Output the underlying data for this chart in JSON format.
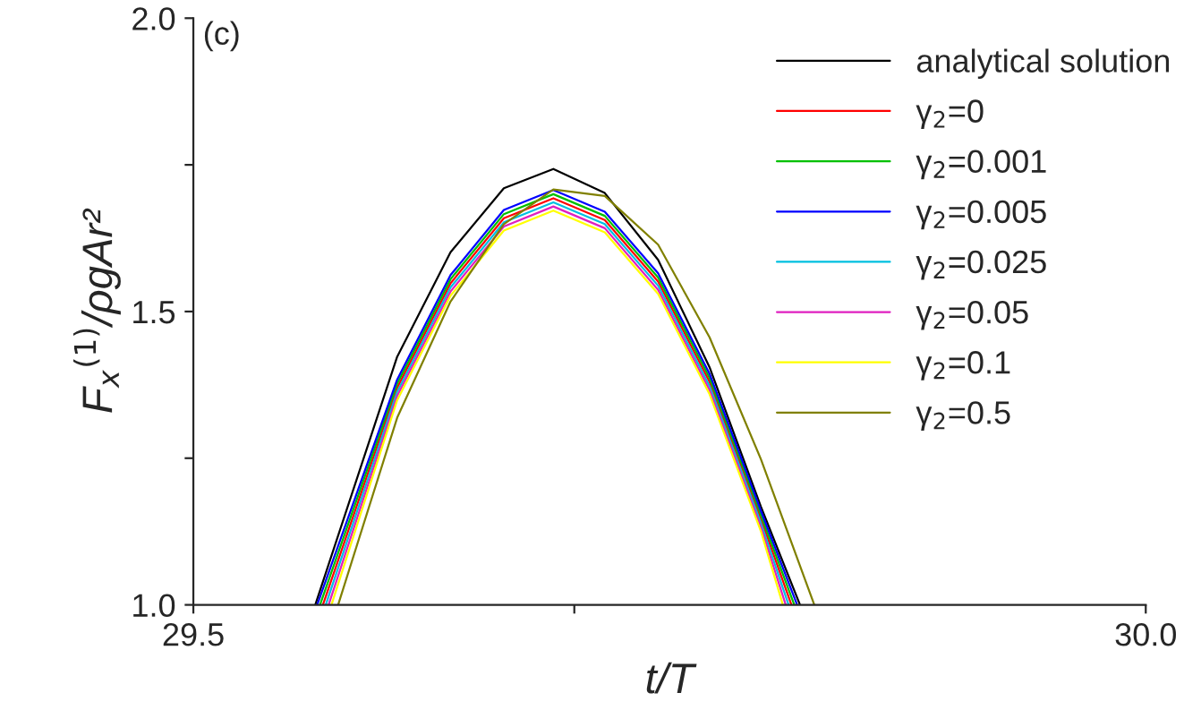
{
  "chart_data": {
    "type": "line",
    "xlabel": "t/T",
    "ylabel": "F$_{x}$$^{(1)}$/ρgAr²",
    "annotations": [
      "(c)"
    ],
    "xlim": [
      29.5,
      30.0
    ],
    "xticks": [
      29.5,
      {
        "value": 29.7,
        "label": null
      },
      {
        "value": 30.0,
        "label": "30.0"
      }
    ],
    "ylim": [
      1.0,
      2.0
    ],
    "yticks": [
      {
        "value": 1.0,
        "label": "1.0"
      },
      {
        "value": 1.25,
        "label": null
      },
      1.5,
      {
        "value": 1.75,
        "label": null
      },
      {
        "value": 2.0,
        "label": "2.0"
      }
    ],
    "legend": "top right",
    "grid": false,
    "marker": "none",
    "line_style": "solid",
    "series": [
      {
        "name": "analytical solution",
        "color": "#000000",
        "x": [
          29.564,
          29.607,
          29.635,
          29.663,
          29.689,
          29.716,
          29.744,
          29.771,
          29.798,
          29.8185
        ],
        "values": [
          1.0,
          1.423,
          1.601,
          1.71,
          1.743,
          1.702,
          1.588,
          1.405,
          1.167,
          1.0
        ]
      },
      {
        "name": "γ$_{2}$=0",
        "color": "#ff0000",
        "x": [
          29.568,
          29.607,
          29.635,
          29.663,
          29.689,
          29.716,
          29.744,
          29.771,
          29.798,
          29.814
        ],
        "values": [
          1.0,
          1.37,
          1.548,
          1.659,
          1.693,
          1.656,
          1.551,
          1.38,
          1.146,
          1.0
        ]
      },
      {
        "name": "γ$_{2}$=0.001",
        "color": "#00c000",
        "x": [
          29.5665,
          29.607,
          29.635,
          29.663,
          29.689,
          29.716,
          29.744,
          29.771,
          29.798,
          29.8155
        ],
        "values": [
          1.0,
          1.377,
          1.555,
          1.666,
          1.7,
          1.663,
          1.558,
          1.387,
          1.153,
          1.0
        ]
      },
      {
        "name": "γ$_{2}$=0.005",
        "color": "#0000ff",
        "x": [
          29.565,
          29.607,
          29.635,
          29.663,
          29.689,
          29.716,
          29.744,
          29.771,
          29.798,
          29.817
        ],
        "values": [
          1.0,
          1.384,
          1.562,
          1.673,
          1.707,
          1.67,
          1.565,
          1.394,
          1.16,
          1.0
        ]
      },
      {
        "name": "γ$_{2}$=0.025",
        "color": "#00c0e0",
        "x": [
          29.5695,
          29.607,
          29.635,
          29.663,
          29.689,
          29.716,
          29.744,
          29.771,
          29.798,
          29.8125
        ],
        "values": [
          1.0,
          1.363,
          1.541,
          1.652,
          1.686,
          1.649,
          1.544,
          1.373,
          1.139,
          1.0
        ]
      },
      {
        "name": "γ$_{2}$=0.05",
        "color": "#e020c0",
        "x": [
          29.571,
          29.607,
          29.635,
          29.663,
          29.689,
          29.716,
          29.744,
          29.771,
          29.798,
          29.811
        ],
        "values": [
          1.0,
          1.356,
          1.534,
          1.645,
          1.679,
          1.642,
          1.537,
          1.366,
          1.132,
          1.0
        ]
      },
      {
        "name": "γ$_{2}$=0.1",
        "color": "#ffff00",
        "x": [
          29.5725,
          29.607,
          29.635,
          29.663,
          29.689,
          29.716,
          29.744,
          29.771,
          29.798,
          29.8095
        ],
        "values": [
          1.0,
          1.349,
          1.527,
          1.638,
          1.672,
          1.635,
          1.53,
          1.359,
          1.125,
          1.0
        ]
      },
      {
        "name": "γ$_{2}$=0.5",
        "color": "#808000",
        "x": [
          29.576,
          29.607,
          29.635,
          29.663,
          29.689,
          29.716,
          29.744,
          29.771,
          29.798,
          29.826
        ],
        "values": [
          1.0,
          1.319,
          1.517,
          1.649,
          1.708,
          1.697,
          1.614,
          1.456,
          1.248,
          1.0
        ]
      }
    ]
  }
}
